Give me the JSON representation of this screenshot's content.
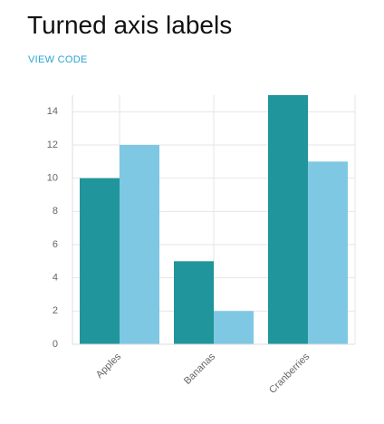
{
  "title": "Turned axis labels",
  "link": "VIEW CODE",
  "chart_data": {
    "type": "bar",
    "categories": [
      "Apples",
      "Bananas",
      "Cranberries"
    ],
    "series": [
      {
        "color": "#20959b",
        "values": [
          10,
          5,
          15
        ]
      },
      {
        "color": "#7ec8e3",
        "values": [
          12,
          2,
          11
        ]
      }
    ],
    "ylim": [
      0,
      15
    ],
    "yticks": [
      0,
      2,
      4,
      6,
      8,
      10,
      12,
      14
    ],
    "grid": true
  }
}
